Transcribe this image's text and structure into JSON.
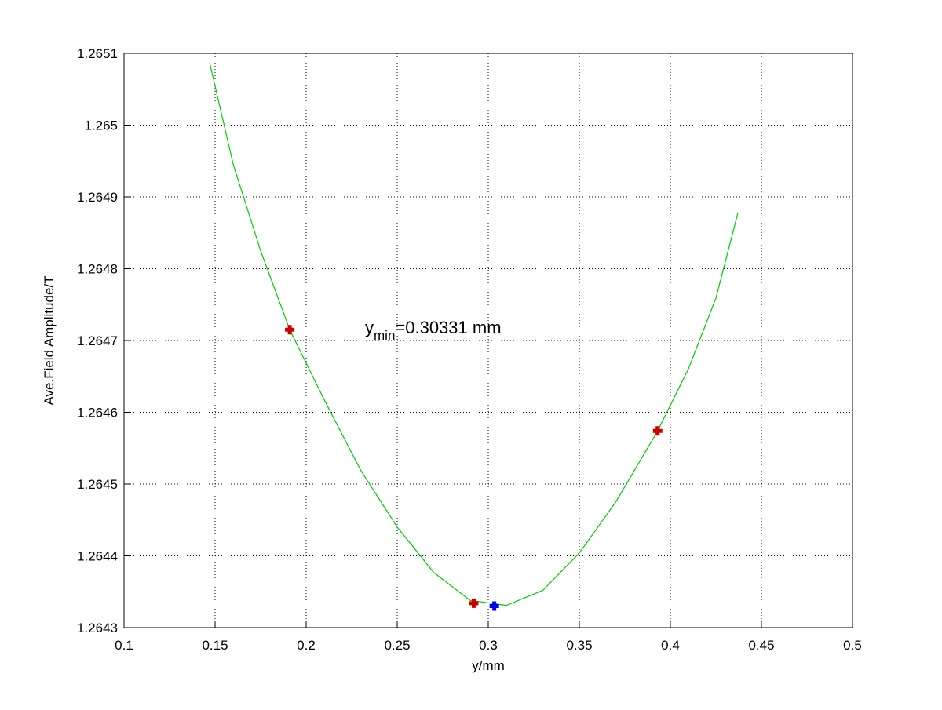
{
  "chart_data": {
    "type": "line",
    "xlabel": "y/mm",
    "ylabel": "Ave.Field Amplitude/T",
    "annotation": {
      "text": "y",
      "sub": "min",
      "rest": "=0.30331 mm"
    },
    "xlim": [
      0.1,
      0.5
    ],
    "xticks": [
      0.1,
      0.15,
      0.2,
      0.25,
      0.3,
      0.35,
      0.4,
      0.45,
      0.5
    ],
    "ylim": [
      1.2643,
      1.2651
    ],
    "yticks": [
      1.2643,
      1.2644,
      1.2645,
      1.2646,
      1.2647,
      1.2648,
      1.2649,
      1.265,
      1.2651
    ],
    "grid": true,
    "series": [
      {
        "style": "line",
        "color": "#00cc00",
        "x": [
          0.147,
          0.16,
          0.175,
          0.191,
          0.21,
          0.23,
          0.25,
          0.27,
          0.29,
          0.31,
          0.33,
          0.35,
          0.37,
          0.393,
          0.41,
          0.425,
          0.437
        ],
        "values": [
          1.265087,
          1.264945,
          1.264825,
          1.264715,
          1.264617,
          1.264519,
          1.26444,
          1.264377,
          1.264338,
          1.264331,
          1.264352,
          1.264404,
          1.264475,
          1.264574,
          1.264661,
          1.264759,
          1.264877
        ]
      },
      {
        "style": "marker",
        "color": "#cc0000",
        "x": [
          0.191,
          0.292,
          0.393
        ],
        "values": [
          1.264715,
          1.264334,
          1.264574
        ]
      },
      {
        "style": "marker",
        "color": "#0000ee",
        "x": [
          0.30331
        ],
        "values": [
          1.26433
        ]
      }
    ]
  }
}
